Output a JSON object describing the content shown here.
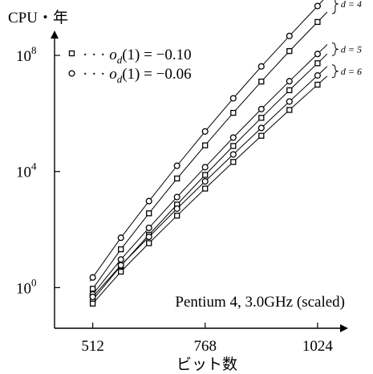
{
  "chart_data": {
    "type": "line",
    "ylabel": "CPU・年",
    "xlabel": "ビット数",
    "annotation": "Pentium 4, 3.0GHz (scaled)",
    "x_ticks": [
      512,
      768,
      1024
    ],
    "x_tick_labels": [
      "512",
      "768",
      "1024"
    ],
    "y_scale": "log10",
    "y_tick_exponents": [
      0,
      4,
      8
    ],
    "y_tick_base": "10",
    "y_tick_sups": [
      "0",
      "4",
      "8"
    ],
    "xlim": [
      425,
      1090
    ],
    "ylim_log10": [
      -1.4,
      9.3
    ],
    "legend": [
      {
        "marker": "square",
        "text_prefix": "· · · ",
        "text_var": "o",
        "text_sub": "d",
        "text_suffix": "(1) = −0.10"
      },
      {
        "marker": "circle",
        "text_prefix": "· · · ",
        "text_var": "o",
        "text_sub": "d",
        "text_suffix": "(1) = −0.06"
      }
    ],
    "group_labels": [
      {
        "d": 4,
        "text": "d = 4"
      },
      {
        "d": 5,
        "text": "d = 5"
      },
      {
        "d": 6,
        "text": "d = 6"
      }
    ],
    "x": [
      512,
      576,
      640,
      704,
      768,
      832,
      896,
      960,
      1024
    ],
    "series": [
      {
        "d": 4,
        "marker": "circle",
        "log10_y": [
          0.35,
          1.72,
          2.98,
          4.2,
          5.38,
          6.52,
          7.62,
          8.67,
          9.7
        ]
      },
      {
        "d": 4,
        "marker": "square",
        "log10_y": [
          -0.04,
          1.32,
          2.56,
          3.76,
          4.9,
          6.02,
          7.1,
          8.15,
          9.15
        ]
      },
      {
        "d": 5,
        "marker": "circle",
        "log10_y": [
          -0.23,
          0.97,
          2.06,
          3.12,
          4.15,
          5.17,
          6.15,
          7.11,
          8.05
        ]
      },
      {
        "d": 5,
        "marker": "square",
        "log10_y": [
          -0.42,
          0.75,
          1.82,
          2.86,
          3.88,
          4.88,
          5.85,
          6.8,
          7.73
        ]
      },
      {
        "d": 6,
        "marker": "circle",
        "log10_y": [
          -0.32,
          0.77,
          1.75,
          2.72,
          3.66,
          4.59,
          5.5,
          6.41,
          7.31
        ]
      },
      {
        "d": 6,
        "marker": "square",
        "log10_y": [
          -0.55,
          0.55,
          1.53,
          2.48,
          3.41,
          4.33,
          5.23,
          6.12,
          6.99
        ]
      }
    ]
  }
}
